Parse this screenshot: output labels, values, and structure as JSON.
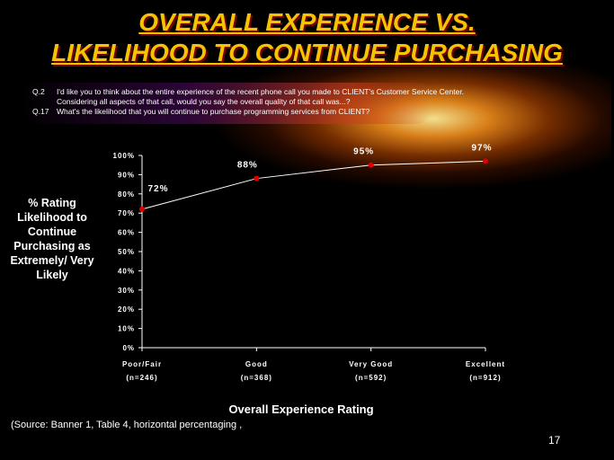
{
  "title": {
    "line1": "OVERALL EXPERIENCE VS.",
    "line2": "LIKELIHOOD TO CONTINUE PURCHASING"
  },
  "questions": {
    "q2_number": "Q.2",
    "q2_line1": "I'd like you to think about the entire experience of the recent phone call you made to CLIENT's Customer Service Center.",
    "q2_line2": "Considering all aspects of that call, would you say the overall quality of that call was...?",
    "q17_number": "Q.17",
    "q17_line": "What's the likelihood that you will continue to purchase programming services from CLIENT?"
  },
  "y_axis_label": "% Rating Likelihood to Continue Purchasing as Extremely/ Very Likely",
  "x_axis_title": "Overall Experience Rating",
  "source": "(Source:  Banner 1, Table 4, horizontal percentaging ,",
  "page_number": "17",
  "colors": {
    "title": "#f5c400",
    "marker": "#e00000",
    "line": "#ffffff",
    "background": "#000000"
  },
  "chart_data": {
    "type": "line",
    "categories": [
      "Poor/Fair",
      "Good",
      "Very Good",
      "Excellent"
    ],
    "category_sublabels": [
      "(n=246)",
      "(n=368)",
      "(n=592)",
      "(n=912)"
    ],
    "series": [
      {
        "values": [
          72,
          88,
          95,
          97
        ]
      }
    ],
    "data_labels": [
      "72%",
      "88%",
      "95%",
      "97%"
    ],
    "y_ticks": [
      "0%",
      "10%",
      "20%",
      "30%",
      "40%",
      "50%",
      "60%",
      "70%",
      "80%",
      "90%",
      "100%"
    ],
    "ylim": [
      0,
      100
    ],
    "xlabel": "Overall Experience Rating",
    "ylabel": "% Rating Likelihood to Continue Purchasing as Extremely/ Very Likely",
    "grid": false,
    "legend": "none"
  }
}
